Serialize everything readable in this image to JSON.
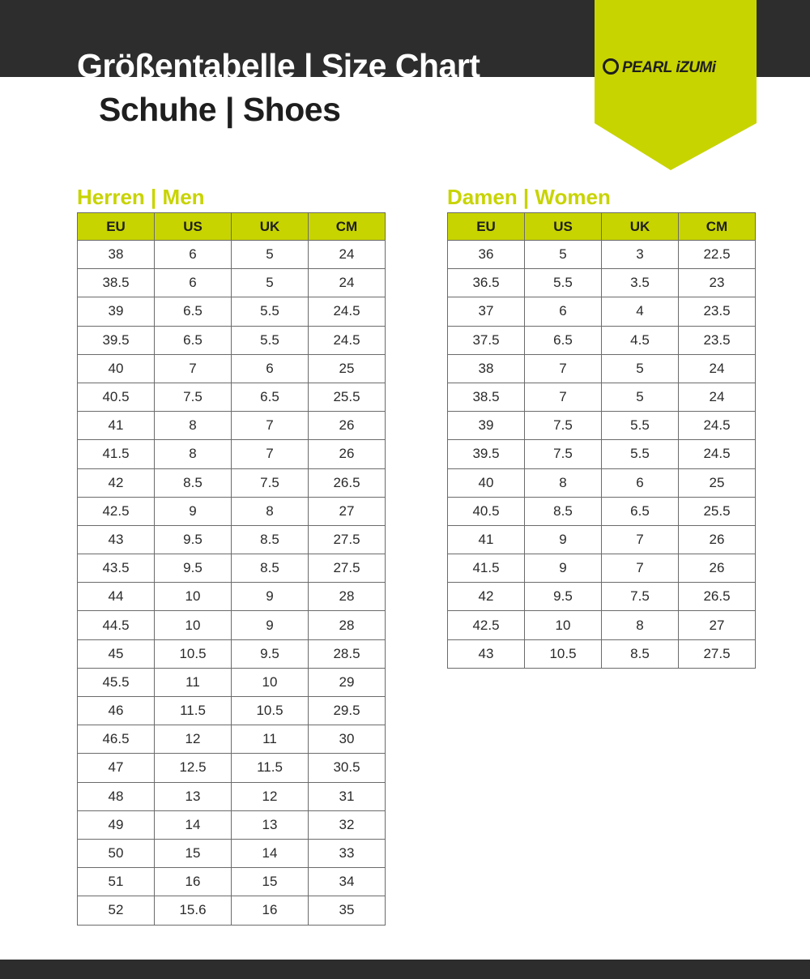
{
  "header": {
    "title": "Größentabelle | Size Chart",
    "subtitle": "Schuhe | Shoes",
    "logo_text": "PEARL iZUMi",
    "colors": {
      "dark": "#2d2d2d",
      "accent": "#c8d400"
    }
  },
  "men": {
    "title": "Herren | Men",
    "columns": [
      "EU",
      "US",
      "UK",
      "CM"
    ],
    "rows": [
      [
        "38",
        "6",
        "5",
        "24"
      ],
      [
        "38.5",
        "6",
        "5",
        "24"
      ],
      [
        "39",
        "6.5",
        "5.5",
        "24.5"
      ],
      [
        "39.5",
        "6.5",
        "5.5",
        "24.5"
      ],
      [
        "40",
        "7",
        "6",
        "25"
      ],
      [
        "40.5",
        "7.5",
        "6.5",
        "25.5"
      ],
      [
        "41",
        "8",
        "7",
        "26"
      ],
      [
        "41.5",
        "8",
        "7",
        "26"
      ],
      [
        "42",
        "8.5",
        "7.5",
        "26.5"
      ],
      [
        "42.5",
        "9",
        "8",
        "27"
      ],
      [
        "43",
        "9.5",
        "8.5",
        "27.5"
      ],
      [
        "43.5",
        "9.5",
        "8.5",
        "27.5"
      ],
      [
        "44",
        "10",
        "9",
        "28"
      ],
      [
        "44.5",
        "10",
        "9",
        "28"
      ],
      [
        "45",
        "10.5",
        "9.5",
        "28.5"
      ],
      [
        "45.5",
        "11",
        "10",
        "29"
      ],
      [
        "46",
        "11.5",
        "10.5",
        "29.5"
      ],
      [
        "46.5",
        "12",
        "11",
        "30"
      ],
      [
        "47",
        "12.5",
        "11.5",
        "30.5"
      ],
      [
        "48",
        "13",
        "12",
        "31"
      ],
      [
        "49",
        "14",
        "13",
        "32"
      ],
      [
        "50",
        "15",
        "14",
        "33"
      ],
      [
        "51",
        "16",
        "15",
        "34"
      ],
      [
        "52",
        "15.6",
        "16",
        "35"
      ]
    ]
  },
  "women": {
    "title": "Damen | Women",
    "columns": [
      "EU",
      "US",
      "UK",
      "CM"
    ],
    "rows": [
      [
        "36",
        "5",
        "3",
        "22.5"
      ],
      [
        "36.5",
        "5.5",
        "3.5",
        "23"
      ],
      [
        "37",
        "6",
        "4",
        "23.5"
      ],
      [
        "37.5",
        "6.5",
        "4.5",
        "23.5"
      ],
      [
        "38",
        "7",
        "5",
        "24"
      ],
      [
        "38.5",
        "7",
        "5",
        "24"
      ],
      [
        "39",
        "7.5",
        "5.5",
        "24.5"
      ],
      [
        "39.5",
        "7.5",
        "5.5",
        "24.5"
      ],
      [
        "40",
        "8",
        "6",
        "25"
      ],
      [
        "40.5",
        "8.5",
        "6.5",
        "25.5"
      ],
      [
        "41",
        "9",
        "7",
        "26"
      ],
      [
        "41.5",
        "9",
        "7",
        "26"
      ],
      [
        "42",
        "9.5",
        "7.5",
        "26.5"
      ],
      [
        "42.5",
        "10",
        "8",
        "27"
      ],
      [
        "43",
        "10.5",
        "8.5",
        "27.5"
      ]
    ]
  }
}
